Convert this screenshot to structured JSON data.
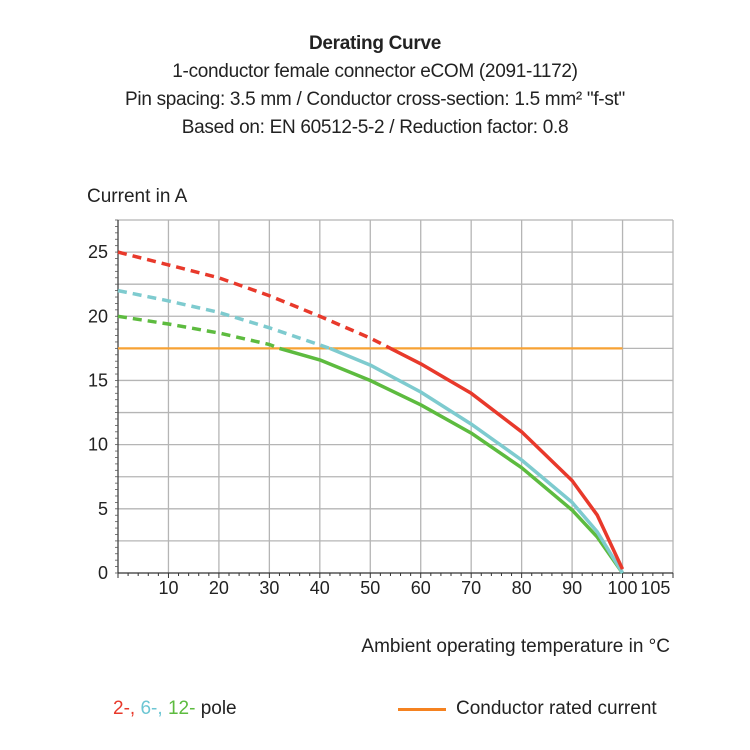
{
  "chart_data": {
    "type": "line",
    "title": "Derating Curve",
    "subtitles": [
      "1-conductor female connector eCOM (2091-1172)",
      "Pin spacing: 3.5 mm / Conductor cross-section: 1.5 mm² \"f-st\"",
      "Based on: EN 60512-5-2 / Reduction factor: 0.8"
    ],
    "xlabel": "Ambient operating temperature in °C",
    "ylabel": "Current in A",
    "xlim": [
      0,
      110
    ],
    "ylim": [
      0,
      27.5
    ],
    "xticks": [
      10,
      20,
      30,
      40,
      50,
      60,
      70,
      80,
      90,
      100,
      105
    ],
    "yticks": [
      0,
      5,
      10,
      15,
      20,
      25
    ],
    "grid": true,
    "series": [
      {
        "key": "2-pole",
        "color": "#e8392b",
        "dashed_until_x": 54,
        "x": [
          0,
          10,
          20,
          30,
          40,
          50,
          54,
          60,
          70,
          80,
          90,
          95,
          100
        ],
        "y": [
          25,
          24,
          23,
          21.6,
          20,
          18.3,
          17.5,
          16.3,
          14,
          11,
          7.2,
          4.5,
          0.3
        ]
      },
      {
        "key": "6-pole",
        "color": "#7ecbcf",
        "dashed_until_x": 42,
        "x": [
          0,
          10,
          20,
          30,
          42,
          50,
          60,
          70,
          80,
          90,
          95,
          100
        ],
        "y": [
          22,
          21.2,
          20.3,
          19.1,
          17.5,
          16.2,
          14.1,
          11.6,
          8.8,
          5.5,
          3.2,
          0
        ]
      },
      {
        "key": "12-pole",
        "color": "#5dbb3f",
        "dashed_until_x": 32,
        "x": [
          0,
          10,
          20,
          30,
          32,
          40,
          50,
          60,
          70,
          80,
          90,
          95,
          100
        ],
        "y": [
          20,
          19.4,
          18.7,
          17.8,
          17.5,
          16.6,
          15,
          13.1,
          10.9,
          8.2,
          4.9,
          2.8,
          0
        ]
      },
      {
        "key": "Conductor rated current",
        "color": "#f7a234",
        "x": [
          0,
          100
        ],
        "y": [
          17.5,
          17.5
        ]
      }
    ],
    "legend": {
      "placement": "bottom",
      "pole_labels": [
        "2-,",
        "6-,",
        "12-"
      ],
      "pole_suffix": "pole",
      "rated": "Conductor rated current",
      "rated_color": "#f58220"
    }
  }
}
